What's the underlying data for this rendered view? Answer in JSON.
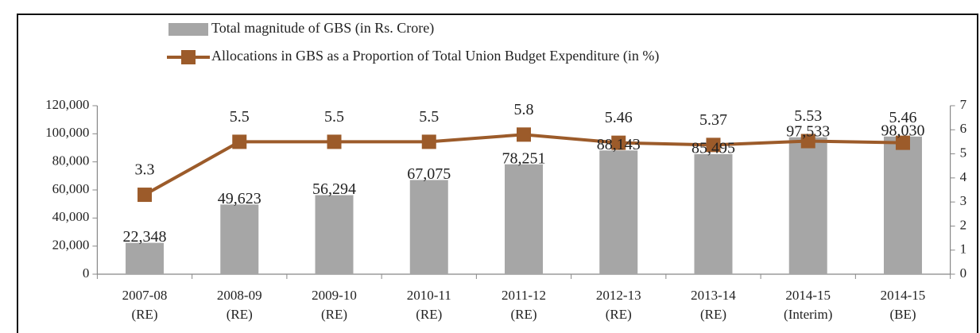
{
  "chart_data": {
    "type": "bar+line",
    "categories": [
      [
        "2007-08",
        "(RE)"
      ],
      [
        "2008-09",
        "(RE)"
      ],
      [
        "2009-10",
        "(RE)"
      ],
      [
        "2010-11",
        "(RE)"
      ],
      [
        "2011-12",
        "(RE)"
      ],
      [
        "2012-13",
        "(RE)"
      ],
      [
        "2013-14",
        "(RE)"
      ],
      [
        "2014-15",
        "(Interim)"
      ],
      [
        "2014-15",
        "(BE)"
      ]
    ],
    "series": [
      {
        "name": "Total magnitude of GBS (in Rs. Crore)",
        "type": "bar",
        "color": "#a6a6a6",
        "axis": "y",
        "values": [
          22348,
          49623,
          56294,
          67075,
          78251,
          88143,
          85495,
          97533,
          98030
        ],
        "value_labels": [
          "22,348",
          "49,623",
          "56,294",
          "67,075",
          "78,251",
          "88,143",
          "85,495",
          "97,533",
          "98,030"
        ]
      },
      {
        "name": "Allocations in GBS as a Proportion of Total Union Budget Expenditure (in %)",
        "type": "line",
        "color": "#9c5b2a",
        "axis": "y2",
        "values": [
          3.3,
          5.5,
          5.5,
          5.5,
          5.8,
          5.46,
          5.37,
          5.53,
          5.46
        ]
      }
    ],
    "ylim": [
      0,
      120000
    ],
    "yticks": [
      0,
      {
        "value": 20000,
        "label": "20,000"
      },
      {
        "value": 40000,
        "label": "40,000"
      },
      {
        "value": 60000,
        "label": "60,000"
      },
      {
        "value": 80000,
        "label": "80,000"
      },
      {
        "value": 100000,
        "label": "100,000"
      },
      {
        "value": 120000,
        "label": "120,000"
      }
    ],
    "y2lim": [
      0,
      7
    ],
    "y2ticks": [
      0,
      1,
      2,
      3,
      4,
      5,
      6,
      7
    ],
    "grid": false,
    "legend": "top"
  }
}
